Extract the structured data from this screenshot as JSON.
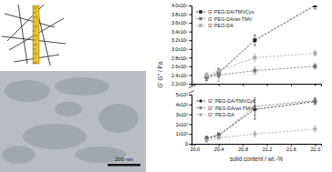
{
  "chart_data": [
    {
      "type": "line",
      "ylabel": "G' G'' / Pa",
      "xlim": [
        19.95,
        22.1
      ],
      "xticks": [
        {
          "value": 20,
          "label": "20.0"
        },
        20.4,
        20.8,
        21.2,
        21.6,
        {
          "value": 22,
          "label": "22.0"
        }
      ],
      "ylim": [
        220000,
        400000
      ],
      "yticks": [
        {
          "value": 220000,
          "label": "2.2x10⁵"
        },
        {
          "value": 240000,
          "label": "2.4x10⁵"
        },
        {
          "value": 260000,
          "label": "2.6x10⁵"
        },
        {
          "value": 280000,
          "label": "2.8x10⁵"
        },
        {
          "value": 300000,
          "label": "3.0x10⁵"
        },
        {
          "value": 320000,
          "label": "3.2x10⁵"
        },
        {
          "value": 340000,
          "label": "3.4x10⁵"
        },
        {
          "value": 360000,
          "label": "3.6x10⁵"
        },
        {
          "value": 380000,
          "label": "3.8x10⁵"
        },
        {
          "value": 400000,
          "label": "4.0x10⁵"
        }
      ],
      "tick_labels": "y",
      "legend": "upper left",
      "x": [
        20.2,
        20.4,
        21.0,
        22.0
      ],
      "series": [
        {
          "name": "G' PEG-DA/TMVCys",
          "color": "#222222",
          "marker": "square",
          "line_style": "dashed",
          "values": [
            235000,
            245000,
            320000,
            400000
          ],
          "errors": [
            8000,
            10000,
            12000,
            8000
          ]
        },
        {
          "name": "G' PEG-DA/wt-TMV",
          "color": "#777777",
          "marker": "square",
          "line_style": "dashed",
          "values": [
            235000,
            240000,
            250000,
            260000
          ],
          "errors": [
            6000,
            15000,
            8000,
            6000
          ]
        },
        {
          "name": "G' PEG-DA",
          "color": "#aaaaaa",
          "marker": "square",
          "line_style": "dashed",
          "values": [
            240000,
            250000,
            280000,
            290000
          ],
          "errors": [
            5000,
            6000,
            8000,
            6000
          ]
        }
      ]
    },
    {
      "type": "line",
      "xlabel": "solid content / wt.-%",
      "xlim": [
        19.95,
        22.1
      ],
      "xticks": [
        {
          "value": 20,
          "label": "20.0"
        },
        20.4,
        20.8,
        21.2,
        21.6,
        {
          "value": 22,
          "label": "22.0"
        }
      ],
      "ylim": [
        0,
        5000
      ],
      "yticks": [
        0,
        {
          "value": 1000,
          "label": "1x10³"
        },
        {
          "value": 2000,
          "label": "2x10³"
        },
        {
          "value": 3000,
          "label": "3x10³"
        },
        {
          "value": 4000,
          "label": "4x10³"
        },
        {
          "value": 5000,
          "label": "5x10³"
        }
      ],
      "legend": "upper left",
      "x": [
        20.2,
        20.4,
        21.0,
        22.0
      ],
      "series": [
        {
          "name": "G'' PEG-DA/TMVCys",
          "color": "#222222",
          "marker": "circle",
          "line_style": "dashed",
          "values": [
            600,
            900,
            3500,
            4300
          ],
          "errors": [
            150,
            200,
            1000,
            300
          ]
        },
        {
          "name": "G'' PEG-DA/wt-TMV",
          "color": "#777777",
          "marker": "circle",
          "line_style": "dashed",
          "values": [
            500,
            800,
            3800,
            4400
          ],
          "errors": [
            150,
            200,
            900,
            300
          ]
        },
        {
          "name": "G'' PEG-DA",
          "color": "#aaaaaa",
          "marker": "circle",
          "line_style": "dashed",
          "values": [
            300,
            600,
            1000,
            1500
          ],
          "errors": [
            100,
            150,
            300,
            300
          ]
        }
      ]
    }
  ],
  "micrograph": {
    "scale_bar": "200 nm"
  }
}
